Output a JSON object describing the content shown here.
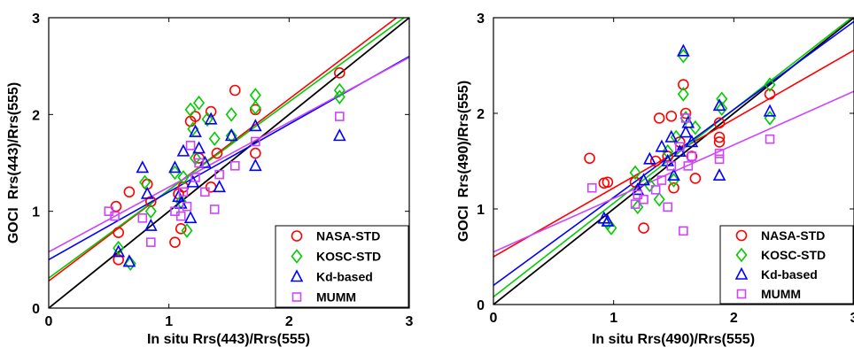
{
  "chart_data": [
    {
      "type": "scatter",
      "title": "",
      "xlabel": "In situ Rrs(443)/Rrs(555)",
      "ylabel": "GOCI  Rrs(443)/Rrs(555)",
      "xlim": [
        0,
        3
      ],
      "ylim": [
        0,
        3
      ],
      "xticks": [
        "0",
        "1",
        "2",
        "3"
      ],
      "yticks": [
        "0",
        "1",
        "2",
        "3"
      ],
      "grid": false,
      "legend_position": "bottom-right",
      "one_to_one_line": {
        "color": "#000000",
        "from": [
          0,
          0
        ],
        "to": [
          3,
          3
        ]
      },
      "series": [
        {
          "name": "NASA-STD",
          "marker": "circle",
          "color": "#ff0000",
          "fit": {
            "intercept": 0.28,
            "slope": 0.94
          },
          "points": [
            [
              0.56,
              1.05
            ],
            [
              0.58,
              0.78
            ],
            [
              0.58,
              0.5
            ],
            [
              0.67,
              1.2
            ],
            [
              0.82,
              1.28
            ],
            [
              0.85,
              1.1
            ],
            [
              1.05,
              0.68
            ],
            [
              1.1,
              0.82
            ],
            [
              1.12,
              1.25
            ],
            [
              1.18,
              1.93
            ],
            [
              1.22,
              1.98
            ],
            [
              1.25,
              1.55
            ],
            [
              1.35,
              2.03
            ],
            [
              1.35,
              1.25
            ],
            [
              1.4,
              1.6
            ],
            [
              1.55,
              2.25
            ],
            [
              1.72,
              2.05
            ],
            [
              1.72,
              1.6
            ],
            [
              2.42,
              2.43
            ],
            [
              1.08,
              1.18
            ]
          ]
        },
        {
          "name": "KOSC-STD",
          "marker": "diamond",
          "color": "#00cc00",
          "fit": {
            "intercept": 0.31,
            "slope": 0.91
          },
          "points": [
            [
              0.58,
              0.62
            ],
            [
              0.68,
              0.46
            ],
            [
              0.8,
              1.3
            ],
            [
              0.85,
              1.0
            ],
            [
              1.05,
              1.4
            ],
            [
              1.1,
              1.1
            ],
            [
              1.15,
              0.8
            ],
            [
              1.18,
              2.05
            ],
            [
              1.22,
              1.55
            ],
            [
              1.25,
              2.12
            ],
            [
              1.32,
              1.95
            ],
            [
              1.38,
              1.75
            ],
            [
              1.52,
              2.0
            ],
            [
              1.52,
              1.78
            ],
            [
              1.72,
              2.2
            ],
            [
              1.72,
              2.07
            ],
            [
              2.42,
              2.25
            ],
            [
              2.42,
              2.18
            ],
            [
              1.12,
              1.35
            ],
            [
              1.2,
              1.85
            ]
          ]
        },
        {
          "name": "Kd-based",
          "marker": "triangle",
          "color": "#0000ff",
          "fit": {
            "intercept": 0.5,
            "slope": 0.7
          },
          "points": [
            [
              0.58,
              0.58
            ],
            [
              0.67,
              0.48
            ],
            [
              0.78,
              1.45
            ],
            [
              0.82,
              1.18
            ],
            [
              0.85,
              0.85
            ],
            [
              1.05,
              1.45
            ],
            [
              1.1,
              1.08
            ],
            [
              1.12,
              1.62
            ],
            [
              1.18,
              0.93
            ],
            [
              1.2,
              1.3
            ],
            [
              1.22,
              1.82
            ],
            [
              1.3,
              1.5
            ],
            [
              1.35,
              1.95
            ],
            [
              1.42,
              1.25
            ],
            [
              1.52,
              1.78
            ],
            [
              1.72,
              1.88
            ],
            [
              1.72,
              1.47
            ],
            [
              2.42,
              1.78
            ],
            [
              1.08,
              1.15
            ],
            [
              1.25,
              1.65
            ]
          ]
        },
        {
          "name": "MUMM",
          "marker": "square",
          "color": "#cc44ff",
          "fit": {
            "intercept": 0.58,
            "slope": 0.67
          },
          "points": [
            [
              0.5,
              1.0
            ],
            [
              0.55,
              0.95
            ],
            [
              0.78,
              0.93
            ],
            [
              0.85,
              0.68
            ],
            [
              1.05,
              1.0
            ],
            [
              1.1,
              0.95
            ],
            [
              1.15,
              1.05
            ],
            [
              1.18,
              1.68
            ],
            [
              1.22,
              1.35
            ],
            [
              1.3,
              1.2
            ],
            [
              1.38,
              1.02
            ],
            [
              1.42,
              1.38
            ],
            [
              1.55,
              1.47
            ],
            [
              1.72,
              1.72
            ],
            [
              2.42,
              1.98
            ],
            [
              1.12,
              1.2
            ],
            [
              1.25,
              1.5
            ]
          ]
        }
      ]
    },
    {
      "type": "scatter",
      "title": "",
      "xlabel": "In situ Rrs(490)/Rrs(555)",
      "ylabel": "GOCI  Rrs(490)/Rrs(555)",
      "xlim": [
        0,
        3
      ],
      "ylim": [
        0,
        3
      ],
      "xticks": [
        "0",
        "1",
        "2",
        "3"
      ],
      "yticks": [
        "0",
        "1",
        "2",
        "3"
      ],
      "grid": false,
      "legend_position": "bottom-right",
      "one_to_one_line": {
        "color": "#000000",
        "from": [
          0,
          0
        ],
        "to": [
          3,
          3
        ]
      },
      "series": [
        {
          "name": "NASA-STD",
          "marker": "circle",
          "color": "#ff0000",
          "fit": {
            "intercept": 0.5,
            "slope": 0.72
          },
          "points": [
            [
              0.8,
              1.53
            ],
            [
              0.92,
              1.27
            ],
            [
              0.95,
              1.28
            ],
            [
              1.18,
              1.28
            ],
            [
              1.25,
              0.8
            ],
            [
              1.35,
              1.5
            ],
            [
              1.38,
              1.95
            ],
            [
              1.48,
              1.97
            ],
            [
              1.5,
              1.22
            ],
            [
              1.58,
              2.3
            ],
            [
              1.6,
              2.0
            ],
            [
              1.65,
              1.55
            ],
            [
              1.68,
              1.32
            ],
            [
              1.88,
              1.75
            ],
            [
              1.88,
              1.7
            ],
            [
              1.88,
              1.9
            ],
            [
              2.3,
              2.2
            ],
            [
              1.45,
              1.55
            ],
            [
              1.55,
              1.7
            ]
          ]
        },
        {
          "name": "KOSC-STD",
          "marker": "diamond",
          "color": "#00cc00",
          "fit": {
            "intercept": 0.08,
            "slope": 0.98
          },
          "points": [
            [
              0.95,
              0.85
            ],
            [
              0.98,
              0.8
            ],
            [
              1.18,
              1.38
            ],
            [
              1.2,
              1.02
            ],
            [
              1.3,
              1.25
            ],
            [
              1.38,
              1.1
            ],
            [
              1.45,
              1.6
            ],
            [
              1.5,
              1.3
            ],
            [
              1.58,
              2.2
            ],
            [
              1.58,
              2.6
            ],
            [
              1.6,
              1.95
            ],
            [
              1.68,
              1.85
            ],
            [
              1.9,
              2.15
            ],
            [
              1.9,
              2.05
            ],
            [
              2.3,
              2.3
            ],
            [
              2.3,
              1.95
            ],
            [
              1.52,
              1.75
            ]
          ]
        },
        {
          "name": "Kd-based",
          "marker": "triangle",
          "color": "#0000ff",
          "fit": {
            "intercept": 0.2,
            "slope": 0.92
          },
          "points": [
            [
              0.92,
              0.9
            ],
            [
              0.95,
              0.87
            ],
            [
              1.2,
              1.2
            ],
            [
              1.25,
              1.3
            ],
            [
              1.3,
              1.52
            ],
            [
              1.4,
              1.65
            ],
            [
              1.45,
              1.5
            ],
            [
              1.48,
              1.75
            ],
            [
              1.5,
              1.35
            ],
            [
              1.58,
              2.65
            ],
            [
              1.6,
              1.8
            ],
            [
              1.62,
              1.9
            ],
            [
              1.65,
              1.7
            ],
            [
              1.88,
              1.35
            ],
            [
              1.88,
              2.08
            ],
            [
              2.3,
              2.02
            ],
            [
              1.55,
              1.6
            ]
          ]
        },
        {
          "name": "MUMM",
          "marker": "square",
          "color": "#cc44ff",
          "fit": {
            "intercept": 0.55,
            "slope": 0.56
          },
          "points": [
            [
              0.82,
              1.22
            ],
            [
              1.18,
              1.05
            ],
            [
              1.2,
              1.15
            ],
            [
              1.25,
              1.1
            ],
            [
              1.35,
              1.2
            ],
            [
              1.45,
              1.02
            ],
            [
              1.48,
              1.45
            ],
            [
              1.55,
              1.65
            ],
            [
              1.58,
              0.77
            ],
            [
              1.6,
              1.95
            ],
            [
              1.62,
              1.45
            ],
            [
              1.65,
              1.55
            ],
            [
              1.88,
              1.52
            ],
            [
              1.88,
              1.58
            ],
            [
              2.3,
              1.73
            ],
            [
              1.4,
              1.3
            ]
          ]
        }
      ]
    }
  ]
}
